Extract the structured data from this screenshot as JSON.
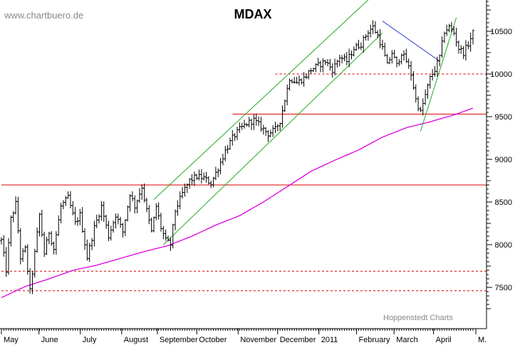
{
  "watermark": "www.chartbuero.de",
  "footer_credit": "Hoppenstedt Charts",
  "chart_data": {
    "type": "bar",
    "subtype": "ohlc-daily",
    "title": "MDAX",
    "xlabel": "",
    "ylabel": "",
    "ylim": [
      7250,
      11000
    ],
    "grid": false,
    "legend": "none",
    "y_ticks": [
      7500,
      8000,
      8500,
      9000,
      9500,
      10000,
      10500
    ],
    "month_labels": [
      "May",
      "June",
      "July",
      "August",
      "September",
      "October",
      "November",
      "December",
      "2011",
      "February",
      "March",
      "April",
      "M."
    ],
    "price_anchors": [
      {
        "d": 0,
        "v": 8050
      },
      {
        "d": 2,
        "v": 7700
      },
      {
        "d": 4,
        "v": 8300
      },
      {
        "d": 6,
        "v": 8480
      },
      {
        "d": 8,
        "v": 7850
      },
      {
        "d": 10,
        "v": 7950
      },
      {
        "d": 12,
        "v": 7450
      },
      {
        "d": 14,
        "v": 7900
      },
      {
        "d": 16,
        "v": 8350
      },
      {
        "d": 18,
        "v": 7900
      },
      {
        "d": 20,
        "v": 8150
      },
      {
        "d": 22,
        "v": 7950
      },
      {
        "d": 25,
        "v": 8450
      },
      {
        "d": 28,
        "v": 8550
      },
      {
        "d": 31,
        "v": 8250
      },
      {
        "d": 33,
        "v": 8350
      },
      {
        "d": 36,
        "v": 7850
      },
      {
        "d": 39,
        "v": 8200
      },
      {
        "d": 42,
        "v": 8450
      },
      {
        "d": 45,
        "v": 8100
      },
      {
        "d": 48,
        "v": 8350
      },
      {
        "d": 51,
        "v": 8150
      },
      {
        "d": 54,
        "v": 8600
      },
      {
        "d": 56,
        "v": 8450
      },
      {
        "d": 59,
        "v": 8680
      },
      {
        "d": 61,
        "v": 8400
      },
      {
        "d": 63,
        "v": 8150
      },
      {
        "d": 65,
        "v": 8450
      },
      {
        "d": 67,
        "v": 8200
      },
      {
        "d": 69,
        "v": 8050
      },
      {
        "d": 71,
        "v": 8000
      },
      {
        "d": 73,
        "v": 8400
      },
      {
        "d": 76,
        "v": 8600
      },
      {
        "d": 79,
        "v": 8750
      },
      {
        "d": 82,
        "v": 8800
      },
      {
        "d": 85,
        "v": 8780
      },
      {
        "d": 88,
        "v": 8720
      },
      {
        "d": 91,
        "v": 8900
      },
      {
        "d": 94,
        "v": 9100
      },
      {
        "d": 97,
        "v": 9250
      },
      {
        "d": 100,
        "v": 9350
      },
      {
        "d": 103,
        "v": 9420
      },
      {
        "d": 106,
        "v": 9460
      },
      {
        "d": 109,
        "v": 9380
      },
      {
        "d": 112,
        "v": 9300
      },
      {
        "d": 115,
        "v": 9350
      },
      {
        "d": 117,
        "v": 9450
      },
      {
        "d": 119,
        "v": 9700
      },
      {
        "d": 121,
        "v": 9950
      },
      {
        "d": 124,
        "v": 9900
      },
      {
        "d": 127,
        "v": 9950
      },
      {
        "d": 130,
        "v": 10050
      },
      {
        "d": 133,
        "v": 10100
      },
      {
        "d": 136,
        "v": 10150
      },
      {
        "d": 139,
        "v": 10050
      },
      {
        "d": 142,
        "v": 10200
      },
      {
        "d": 145,
        "v": 10150
      },
      {
        "d": 148,
        "v": 10300
      },
      {
        "d": 151,
        "v": 10350
      },
      {
        "d": 154,
        "v": 10500
      },
      {
        "d": 156,
        "v": 10550
      },
      {
        "d": 158,
        "v": 10450
      },
      {
        "d": 160,
        "v": 10300
      },
      {
        "d": 162,
        "v": 10100
      },
      {
        "d": 164,
        "v": 10250
      },
      {
        "d": 166,
        "v": 10100
      },
      {
        "d": 168,
        "v": 10250
      },
      {
        "d": 170,
        "v": 10150
      },
      {
        "d": 172,
        "v": 10000
      },
      {
        "d": 174,
        "v": 9700
      },
      {
        "d": 176,
        "v": 9550
      },
      {
        "d": 178,
        "v": 9750
      },
      {
        "d": 180,
        "v": 9950
      },
      {
        "d": 182,
        "v": 10050
      },
      {
        "d": 184,
        "v": 10200
      },
      {
        "d": 186,
        "v": 10500
      },
      {
        "d": 188,
        "v": 10550
      },
      {
        "d": 190,
        "v": 10480
      },
      {
        "d": 192,
        "v": 10300
      },
      {
        "d": 194,
        "v": 10250
      },
      {
        "d": 196,
        "v": 10350
      },
      {
        "d": 198,
        "v": 10480
      }
    ],
    "moving_average": [
      {
        "d": 0,
        "v": 7380
      },
      {
        "d": 10,
        "v": 7510
      },
      {
        "d": 20,
        "v": 7600
      },
      {
        "d": 30,
        "v": 7700
      },
      {
        "d": 40,
        "v": 7760
      },
      {
        "d": 50,
        "v": 7840
      },
      {
        "d": 60,
        "v": 7920
      },
      {
        "d": 70,
        "v": 7990
      },
      {
        "d": 80,
        "v": 8100
      },
      {
        "d": 90,
        "v": 8230
      },
      {
        "d": 100,
        "v": 8340
      },
      {
        "d": 110,
        "v": 8500
      },
      {
        "d": 120,
        "v": 8680
      },
      {
        "d": 130,
        "v": 8860
      },
      {
        "d": 140,
        "v": 8990
      },
      {
        "d": 150,
        "v": 9110
      },
      {
        "d": 160,
        "v": 9260
      },
      {
        "d": 170,
        "v": 9370
      },
      {
        "d": 180,
        "v": 9440
      },
      {
        "d": 190,
        "v": 9520
      },
      {
        "d": 198,
        "v": 9600
      }
    ],
    "horizontal_lines": [
      {
        "value": 8700,
        "style": "solid",
        "color": "#dd0000",
        "from_day": 0
      },
      {
        "value": 9530,
        "style": "solid",
        "color": "#dd0000",
        "from_day": 97
      },
      {
        "value": 10000,
        "style": "dashed",
        "color": "#dd0000",
        "from_day": 115
      },
      {
        "value": 7690,
        "style": "dashed",
        "color": "#dd0000",
        "from_day": 0
      },
      {
        "value": 7460,
        "style": "dashed",
        "color": "#dd0000",
        "from_day": 0
      }
    ],
    "trend_lines": [
      {
        "from": {
          "d": 64,
          "v": 8530
        },
        "to": {
          "d": 156,
          "v": 10920
        },
        "color": "#22aa22"
      },
      {
        "from": {
          "d": 68,
          "v": 8000
        },
        "to": {
          "d": 160,
          "v": 10480
        },
        "color": "#22aa22"
      },
      {
        "from": {
          "d": 160,
          "v": 10620
        },
        "to": {
          "d": 184,
          "v": 10150
        },
        "color": "#2233cc"
      },
      {
        "from": {
          "d": 176,
          "v": 9330
        },
        "to": {
          "d": 191,
          "v": 10660
        },
        "color": "#22aa22"
      }
    ],
    "colors": {
      "bars": "#000000",
      "moving_average": "#dd00dd",
      "axis": "#000000",
      "text": "#000000",
      "watermark": "#888888"
    }
  }
}
